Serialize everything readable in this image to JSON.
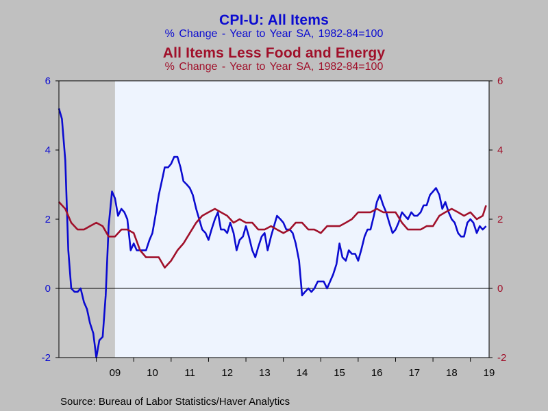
{
  "header": {
    "title1": "CPI-U: All Items",
    "subtitle1": "% Change - Year to Year    SA, 1982-84=100",
    "title2": "All Items Less Food and Energy",
    "subtitle2": "% Change - Year to Year    SA, 1982-84=100"
  },
  "source": "Source:  Bureau of Labor Statistics/Haver Analytics",
  "chart_data": {
    "type": "line",
    "ylim": [
      -2,
      6
    ],
    "yticks": [
      -2,
      0,
      2,
      4,
      6
    ],
    "xlim": [
      2008.0,
      2019.5
    ],
    "xticks": [
      "09",
      "10",
      "11",
      "12",
      "13",
      "14",
      "15",
      "16",
      "17",
      "18",
      "19"
    ],
    "recession": [
      2008.0,
      2009.5
    ],
    "colors": {
      "cpi": "#0b0bd0",
      "core": "#a0102a",
      "recession": "#c8c8c8",
      "plot_bg": "#eef4fe"
    },
    "series": [
      {
        "key": "cpi",
        "name": "CPI-U: All Items",
        "x": [
          2008.0,
          2008.08,
          2008.17,
          2008.25,
          2008.33,
          2008.42,
          2008.5,
          2008.58,
          2008.67,
          2008.75,
          2008.83,
          2008.92,
          2009.0,
          2009.08,
          2009.17,
          2009.25,
          2009.33,
          2009.42,
          2009.5,
          2009.58,
          2009.67,
          2009.75,
          2009.83,
          2009.92,
          2010.0,
          2010.08,
          2010.17,
          2010.25,
          2010.33,
          2010.42,
          2010.5,
          2010.58,
          2010.67,
          2010.75,
          2010.83,
          2010.92,
          2011.0,
          2011.08,
          2011.17,
          2011.25,
          2011.33,
          2011.42,
          2011.5,
          2011.58,
          2011.67,
          2011.75,
          2011.83,
          2011.92,
          2012.0,
          2012.08,
          2012.17,
          2012.25,
          2012.33,
          2012.42,
          2012.5,
          2012.58,
          2012.67,
          2012.75,
          2012.83,
          2012.92,
          2013.0,
          2013.08,
          2013.17,
          2013.25,
          2013.33,
          2013.42,
          2013.5,
          2013.58,
          2013.67,
          2013.75,
          2013.83,
          2013.92,
          2014.0,
          2014.08,
          2014.17,
          2014.25,
          2014.33,
          2014.42,
          2014.5,
          2014.58,
          2014.67,
          2014.75,
          2014.83,
          2014.92,
          2015.0,
          2015.08,
          2015.17,
          2015.25,
          2015.33,
          2015.42,
          2015.5,
          2015.58,
          2015.67,
          2015.75,
          2015.83,
          2015.92,
          2016.0,
          2016.08,
          2016.17,
          2016.25,
          2016.33,
          2016.42,
          2016.5,
          2016.58,
          2016.67,
          2016.75,
          2016.83,
          2016.92,
          2017.0,
          2017.08,
          2017.17,
          2017.25,
          2017.33,
          2017.42,
          2017.5,
          2017.58,
          2017.67,
          2017.75,
          2017.83,
          2017.92,
          2018.0,
          2018.08,
          2018.17,
          2018.25,
          2018.33,
          2018.42,
          2018.5,
          2018.58,
          2018.67,
          2018.75,
          2018.83,
          2018.92,
          2019.0,
          2019.08,
          2019.17,
          2019.25,
          2019.33,
          2019.42
        ],
        "y": [
          5.2,
          4.9,
          3.7,
          1.1,
          0.0,
          -0.1,
          -0.1,
          0.0,
          -0.4,
          -0.6,
          -1.0,
          -1.3,
          -2.0,
          -1.5,
          -1.4,
          -0.2,
          1.8,
          2.8,
          2.6,
          2.1,
          2.3,
          2.2,
          2.0,
          1.1,
          1.3,
          1.1,
          1.1,
          1.1,
          1.1,
          1.4,
          1.6,
          2.1,
          2.7,
          3.1,
          3.5,
          3.5,
          3.6,
          3.8,
          3.8,
          3.5,
          3.1,
          3.0,
          2.9,
          2.7,
          2.3,
          2.0,
          1.7,
          1.6,
          1.4,
          1.7,
          2.0,
          2.2,
          1.7,
          1.7,
          1.6,
          1.9,
          1.6,
          1.1,
          1.4,
          1.5,
          1.8,
          1.5,
          1.1,
          0.9,
          1.2,
          1.5,
          1.6,
          1.1,
          1.5,
          1.8,
          2.1,
          2.0,
          1.9,
          1.7,
          1.7,
          1.6,
          1.3,
          0.8,
          -0.2,
          -0.1,
          0.0,
          -0.1,
          0.0,
          0.2,
          0.2,
          0.2,
          0.0,
          0.2,
          0.4,
          0.7,
          1.3,
          0.9,
          0.8,
          1.1,
          1.0,
          1.0,
          0.8,
          1.1,
          1.5,
          1.7,
          1.7,
          2.1,
          2.5,
          2.7,
          2.4,
          2.2,
          1.9,
          1.6,
          1.7,
          1.9,
          2.2,
          2.1,
          2.0,
          2.2,
          2.1,
          2.1,
          2.2,
          2.4,
          2.4,
          2.7,
          2.8,
          2.9,
          2.7,
          2.3,
          2.5,
          2.2,
          2.0,
          1.9,
          1.6,
          1.5,
          1.5,
          1.9,
          2.0,
          1.9,
          1.6,
          1.8,
          1.7,
          1.8
        ],
        "labels": []
      },
      {
        "key": "core",
        "name": "All Items Less Food and Energy",
        "x": [
          2008.0,
          2008.17,
          2008.33,
          2008.5,
          2008.67,
          2008.83,
          2009.0,
          2009.17,
          2009.33,
          2009.5,
          2009.67,
          2009.83,
          2010.0,
          2010.17,
          2010.33,
          2010.5,
          2010.67,
          2010.83,
          2011.0,
          2011.17,
          2011.33,
          2011.5,
          2011.67,
          2011.83,
          2012.0,
          2012.17,
          2012.33,
          2012.5,
          2012.67,
          2012.83,
          2013.0,
          2013.17,
          2013.33,
          2013.5,
          2013.67,
          2013.83,
          2014.0,
          2014.17,
          2014.33,
          2014.5,
          2014.67,
          2014.83,
          2015.0,
          2015.17,
          2015.33,
          2015.5,
          2015.67,
          2015.83,
          2016.0,
          2016.17,
          2016.33,
          2016.5,
          2016.67,
          2016.83,
          2017.0,
          2017.17,
          2017.33,
          2017.5,
          2017.67,
          2017.83,
          2018.0,
          2018.17,
          2018.33,
          2018.5,
          2018.67,
          2018.83,
          2019.0,
          2019.17,
          2019.33,
          2019.42
        ],
        "y": [
          2.5,
          2.3,
          1.9,
          1.7,
          1.7,
          1.8,
          1.9,
          1.8,
          1.5,
          1.5,
          1.7,
          1.7,
          1.6,
          1.1,
          0.9,
          0.9,
          0.9,
          0.6,
          0.8,
          1.1,
          1.3,
          1.6,
          1.9,
          2.1,
          2.2,
          2.3,
          2.2,
          2.1,
          1.9,
          2.0,
          1.9,
          1.9,
          1.7,
          1.7,
          1.8,
          1.7,
          1.6,
          1.7,
          1.9,
          1.9,
          1.7,
          1.7,
          1.6,
          1.8,
          1.8,
          1.8,
          1.9,
          2.0,
          2.2,
          2.2,
          2.2,
          2.3,
          2.2,
          2.2,
          2.2,
          1.9,
          1.7,
          1.7,
          1.7,
          1.8,
          1.8,
          2.1,
          2.2,
          2.3,
          2.2,
          2.1,
          2.2,
          2.0,
          2.1,
          2.4
        ],
        "labels": []
      }
    ]
  }
}
